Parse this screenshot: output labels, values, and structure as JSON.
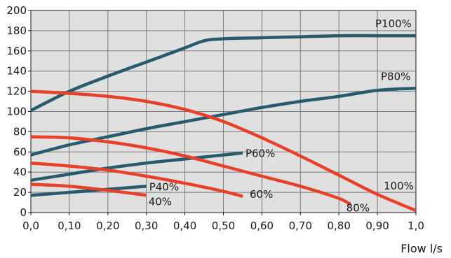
{
  "chart_data": {
    "type": "line",
    "title": "",
    "xlabel": "Flow l/s",
    "ylabel": "",
    "xlim": [
      0,
      1.0
    ],
    "ylim": [
      0,
      200
    ],
    "grid": true,
    "plot_background": "#e0e0e0",
    "x_ticks": [
      0,
      0.1,
      0.2,
      0.3,
      0.4,
      0.5,
      0.6,
      0.7,
      0.8,
      0.9,
      1.0
    ],
    "x_tick_labels": [
      "0,0",
      "0,10",
      "0,20",
      "0,30",
      "0,40",
      "0,50",
      "0,60",
      "0,70",
      "0,80",
      "0,90",
      "1,0"
    ],
    "y_ticks": [
      0,
      20,
      40,
      60,
      80,
      100,
      120,
      140,
      160,
      180,
      200
    ],
    "y_tick_labels": [
      "0",
      "20",
      "40",
      "60",
      "80",
      "100",
      "120",
      "140",
      "160",
      "180",
      "200"
    ],
    "series": [
      {
        "name": "P100%",
        "color": "#275b6d",
        "points": [
          [
            0,
            101
          ],
          [
            0.1,
            120
          ],
          [
            0.2,
            135
          ],
          [
            0.3,
            149
          ],
          [
            0.4,
            163
          ],
          [
            0.45,
            170
          ],
          [
            0.5,
            172
          ],
          [
            0.6,
            173
          ],
          [
            0.7,
            174
          ],
          [
            0.8,
            175
          ],
          [
            0.9,
            175
          ],
          [
            1.0,
            175
          ]
        ]
      },
      {
        "name": "P80%",
        "color": "#275b6d",
        "points": [
          [
            0,
            57
          ],
          [
            0.1,
            67
          ],
          [
            0.2,
            75
          ],
          [
            0.3,
            83
          ],
          [
            0.4,
            90
          ],
          [
            0.5,
            97
          ],
          [
            0.6,
            104
          ],
          [
            0.7,
            110
          ],
          [
            0.8,
            115
          ],
          [
            0.9,
            121
          ],
          [
            1.0,
            123
          ]
        ]
      },
      {
        "name": "P60%",
        "color": "#275b6d",
        "points": [
          [
            0,
            32
          ],
          [
            0.1,
            38
          ],
          [
            0.2,
            44
          ],
          [
            0.3,
            49
          ],
          [
            0.4,
            53
          ],
          [
            0.5,
            57
          ],
          [
            0.55,
            59
          ]
        ]
      },
      {
        "name": "P40%",
        "color": "#275b6d",
        "points": [
          [
            0,
            17
          ],
          [
            0.1,
            20
          ],
          [
            0.2,
            23
          ],
          [
            0.3,
            26
          ]
        ]
      },
      {
        "name": "100%",
        "color": "#e8412a",
        "points": [
          [
            0,
            120
          ],
          [
            0.1,
            118
          ],
          [
            0.2,
            115
          ],
          [
            0.3,
            110
          ],
          [
            0.4,
            102
          ],
          [
            0.5,
            90
          ],
          [
            0.6,
            74
          ],
          [
            0.7,
            56
          ],
          [
            0.8,
            37
          ],
          [
            0.9,
            18
          ],
          [
            1.0,
            2
          ]
        ]
      },
      {
        "name": "80%",
        "color": "#e8412a",
        "points": [
          [
            0,
            75
          ],
          [
            0.1,
            74
          ],
          [
            0.2,
            70
          ],
          [
            0.3,
            64
          ],
          [
            0.4,
            56
          ],
          [
            0.5,
            46
          ],
          [
            0.6,
            36
          ],
          [
            0.7,
            26
          ],
          [
            0.8,
            14
          ],
          [
            0.83,
            8
          ]
        ]
      },
      {
        "name": "60%",
        "color": "#e8412a",
        "points": [
          [
            0,
            49
          ],
          [
            0.1,
            46
          ],
          [
            0.2,
            42
          ],
          [
            0.3,
            36
          ],
          [
            0.4,
            29
          ],
          [
            0.5,
            21
          ],
          [
            0.55,
            16
          ]
        ]
      },
      {
        "name": "40%",
        "color": "#e8412a",
        "points": [
          [
            0,
            28
          ],
          [
            0.1,
            26
          ],
          [
            0.2,
            22
          ],
          [
            0.3,
            17
          ]
        ]
      }
    ]
  }
}
